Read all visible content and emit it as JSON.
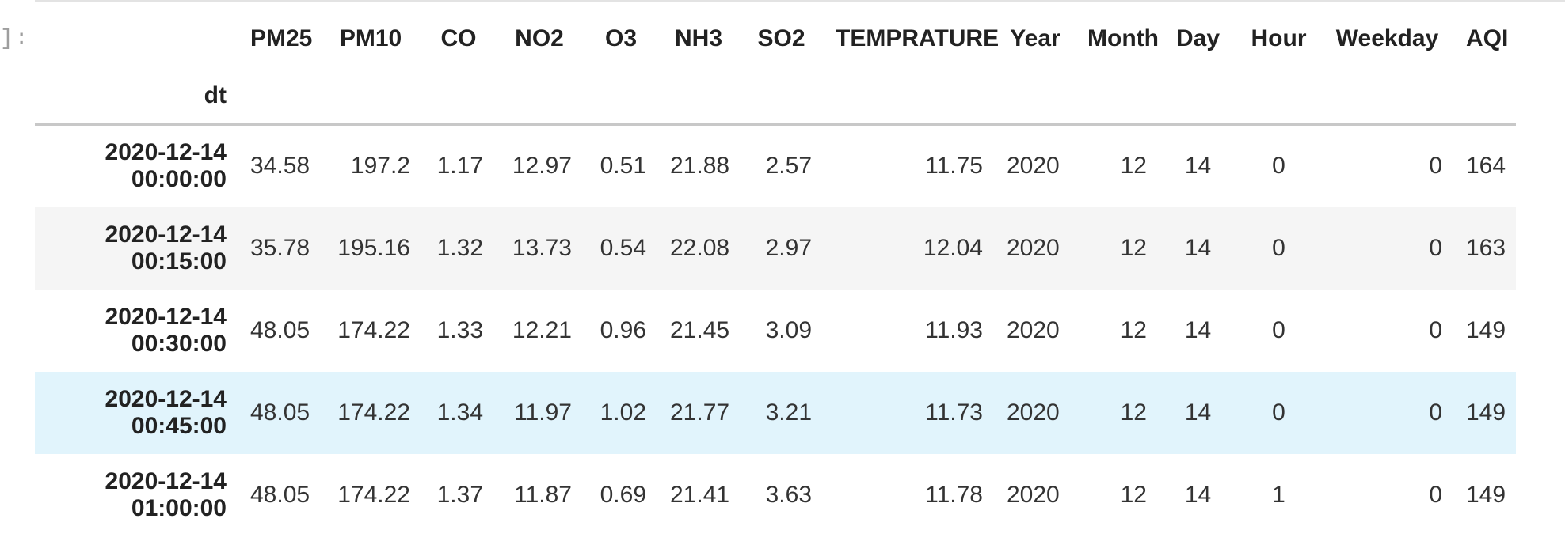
{
  "cell": {
    "prompt": "]:"
  },
  "table": {
    "columns": [
      "PM25",
      "PM10",
      "CO",
      "NO2",
      "O3",
      "NH3",
      "SO2",
      "TEMPRATURE",
      "Year",
      "Month",
      "Day",
      "Hour",
      "Weekday",
      "AQI"
    ],
    "index_name": "dt",
    "rows": [
      {
        "date": "2020-12-14",
        "time": "00:00:00",
        "cells": [
          "34.58",
          "197.2",
          "1.17",
          "12.97",
          "0.51",
          "21.88",
          "2.57",
          "11.75",
          "2020",
          "12",
          "14",
          "0",
          "0",
          "164"
        ]
      },
      {
        "date": "2020-12-14",
        "time": "00:15:00",
        "cells": [
          "35.78",
          "195.16",
          "1.32",
          "13.73",
          "0.54",
          "22.08",
          "2.97",
          "12.04",
          "2020",
          "12",
          "14",
          "0",
          "0",
          "163"
        ]
      },
      {
        "date": "2020-12-14",
        "time": "00:30:00",
        "cells": [
          "48.05",
          "174.22",
          "1.33",
          "12.21",
          "0.96",
          "21.45",
          "3.09",
          "11.93",
          "2020",
          "12",
          "14",
          "0",
          "0",
          "149"
        ]
      },
      {
        "date": "2020-12-14",
        "time": "00:45:00",
        "cells": [
          "48.05",
          "174.22",
          "1.34",
          "11.97",
          "1.02",
          "21.77",
          "3.21",
          "11.73",
          "2020",
          "12",
          "14",
          "0",
          "0",
          "149"
        ]
      },
      {
        "date": "2020-12-14",
        "time": "01:00:00",
        "cells": [
          "48.05",
          "174.22",
          "1.37",
          "11.87",
          "0.69",
          "21.41",
          "3.63",
          "11.78",
          "2020",
          "12",
          "14",
          "1",
          "0",
          "149"
        ]
      }
    ]
  },
  "colors": {
    "stripe": "#f5f5f5",
    "hover_row": "#e1f4fc",
    "header_rule": "#c8c8c8"
  }
}
